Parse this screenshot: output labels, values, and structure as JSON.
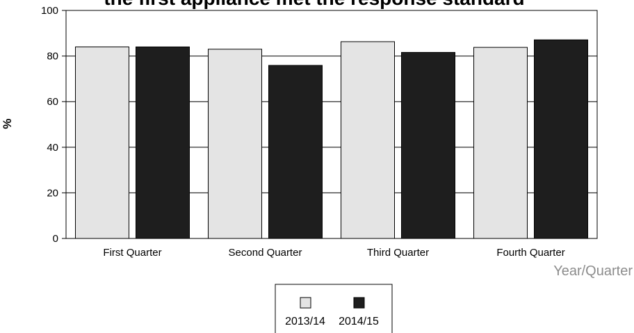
{
  "chart_data": {
    "type": "bar",
    "title": "the first appliance met the response standard",
    "ylabel": "%",
    "xlabel": "Year/Quarter",
    "categories": [
      "First Quarter",
      "Second Quarter",
      "Third Quarter",
      "Fourth Quarter"
    ],
    "series": [
      {
        "name": "2013/14",
        "values": [
          84,
          83,
          86.3,
          83.8
        ],
        "color": "#e4e4e4"
      },
      {
        "name": "2014/15",
        "values": [
          84,
          75.9,
          81.6,
          87.1
        ],
        "color": "#1e1e1e"
      }
    ],
    "ylim": [
      0,
      100
    ],
    "yticks": [
      0,
      20,
      40,
      60,
      80,
      100
    ],
    "grid": true,
    "legend": "bottom-center"
  }
}
